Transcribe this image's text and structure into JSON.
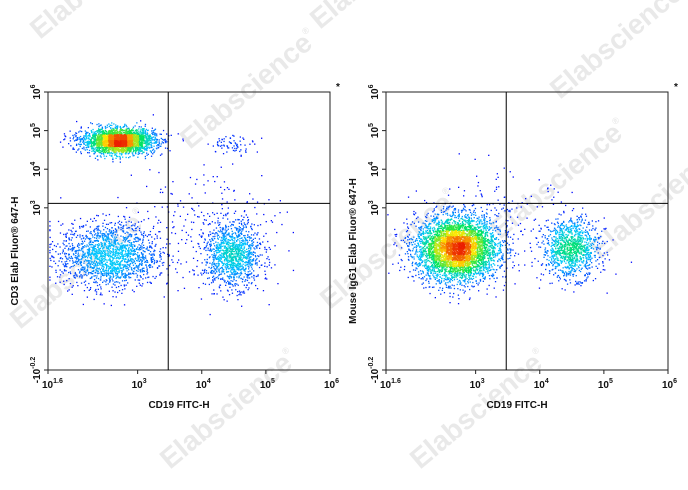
{
  "watermark": {
    "text": "Elabscience",
    "mark": "®"
  },
  "colors": {
    "low": "#0000ff",
    "mid1": "#00ffff",
    "mid2": "#00ff00",
    "mid3": "#ffff00",
    "high": "#ff0000",
    "gate": "#000000"
  },
  "chart_data": [
    {
      "type": "scatter",
      "subtype": "flow-cytometry-density-dot-plot",
      "panel_marker": "*",
      "xlabel": "CD19 FITC-H",
      "ylabel": "CD3 Elab Fluor® 647-H",
      "x_scale": "log",
      "y_scale": "log",
      "xlim": [
        40,
        1000000
      ],
      "ylim": [
        0.063,
        1000000
      ],
      "x_ticks": [
        {
          "base": "10",
          "exp": "1.6",
          "value": 40
        },
        {
          "base": "10",
          "exp": "3",
          "value": 1000
        },
        {
          "base": "10",
          "exp": "4",
          "value": 10000
        },
        {
          "base": "10",
          "exp": "5",
          "value": 100000
        },
        {
          "base": "10",
          "exp": "6",
          "value": 1000000
        }
      ],
      "y_ticks": [
        {
          "base": "-10",
          "exp": "-0.2",
          "value": 0.063
        },
        {
          "base": "10",
          "exp": "3",
          "value": 1000
        },
        {
          "base": "10",
          "exp": "4",
          "value": 10000
        },
        {
          "base": "10",
          "exp": "5",
          "value": 100000
        },
        {
          "base": "10",
          "exp": "6",
          "value": 1000000
        }
      ],
      "gate": {
        "x": 3000,
        "y": 1300
      },
      "populations": [
        {
          "center": [
            500,
            55000
          ],
          "spread": [
            0.28,
            0.16
          ],
          "count": 2600
        },
        {
          "center": [
            350,
            60
          ],
          "spread": [
            0.38,
            0.42
          ],
          "count": 1700
        },
        {
          "center": [
            30000,
            60
          ],
          "spread": [
            0.22,
            0.42
          ],
          "count": 1200
        },
        {
          "center": [
            30000,
            45000
          ],
          "spread": [
            0.18,
            0.12
          ],
          "count": 70
        },
        {
          "center": [
            10000,
            400
          ],
          "spread": [
            0.6,
            0.8
          ],
          "count": 220
        }
      ]
    },
    {
      "type": "scatter",
      "subtype": "flow-cytometry-density-dot-plot",
      "panel_marker": "*",
      "xlabel": "CD19 FITC-H",
      "ylabel": "Mouse IgG1 Elab Fluor® 647-H",
      "x_scale": "log",
      "y_scale": "log",
      "xlim": [
        40,
        1000000
      ],
      "ylim": [
        0.063,
        1000000
      ],
      "x_ticks": [
        {
          "base": "10",
          "exp": "1.6",
          "value": 40
        },
        {
          "base": "10",
          "exp": "3",
          "value": 1000
        },
        {
          "base": "10",
          "exp": "4",
          "value": 10000
        },
        {
          "base": "10",
          "exp": "5",
          "value": 100000
        },
        {
          "base": "10",
          "exp": "6",
          "value": 1000000
        }
      ],
      "y_ticks": [
        {
          "base": "-10",
          "exp": "-0.2",
          "value": 0.063
        },
        {
          "base": "10",
          "exp": "3",
          "value": 1000
        },
        {
          "base": "10",
          "exp": "4",
          "value": 10000
        },
        {
          "base": "10",
          "exp": "5",
          "value": 100000
        },
        {
          "base": "10",
          "exp": "6",
          "value": 1000000
        }
      ],
      "gate": {
        "x": 3000,
        "y": 1300
      },
      "populations": [
        {
          "center": [
            500,
            90
          ],
          "spread": [
            0.32,
            0.42
          ],
          "count": 4200
        },
        {
          "center": [
            30000,
            90
          ],
          "spread": [
            0.22,
            0.38
          ],
          "count": 1100
        },
        {
          "center": [
            3000,
            500
          ],
          "spread": [
            0.5,
            0.6
          ],
          "count": 140
        }
      ]
    }
  ]
}
